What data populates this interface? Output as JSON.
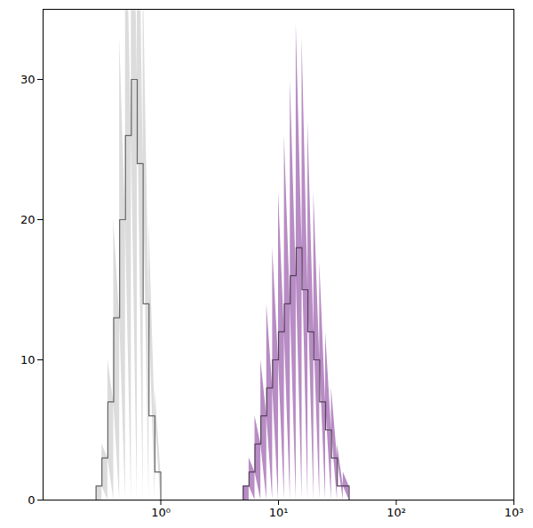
{
  "chart_data": {
    "type": "histogram",
    "log": "x",
    "bins": [
      0.251,
      0.282,
      0.316,
      0.355,
      0.398,
      0.447,
      0.501,
      0.562,
      0.631,
      0.708,
      0.794,
      0.891,
      1,
      1.122,
      1.259,
      1.413,
      1.585,
      1.778,
      1.995,
      2.239,
      2.512,
      2.818,
      3.162,
      3.548,
      3.981,
      4.467,
      5.012,
      5.623,
      6.31,
      7.079,
      7.943,
      8.913,
      10,
      11.22,
      12.59,
      14.13,
      15.85,
      17.78,
      19.95,
      22.39,
      25.12,
      28.18,
      31.62,
      35.48,
      39.81,
      44.67,
      50.12
    ],
    "series": [
      {
        "color": "#dcdcdc",
        "values": [
          0,
          1,
          3,
          7,
          13,
          20,
          26,
          30,
          24,
          14,
          6,
          2,
          0,
          0,
          0,
          0,
          0,
          0,
          0,
          0,
          0,
          0,
          0,
          0,
          0,
          0,
          0,
          0,
          0,
          0,
          0,
          0,
          0,
          0,
          0,
          0,
          0,
          0,
          0,
          0,
          0,
          0,
          0,
          0,
          0,
          0
        ]
      },
      {
        "color": "#b88cc4",
        "values": [
          0,
          0,
          0,
          0,
          0,
          0,
          0,
          0,
          0,
          0,
          0,
          0,
          0,
          0,
          0,
          0,
          0,
          0,
          0,
          0,
          0,
          0,
          0,
          0,
          0,
          0,
          1,
          2,
          4,
          6,
          8,
          10,
          12,
          14,
          16,
          18,
          15,
          12,
          10,
          7,
          5,
          3,
          1,
          1,
          0,
          0
        ]
      }
    ],
    "xlim": [
      0.1,
      1000
    ],
    "xticks": [
      {
        "value": 1,
        "label": "10⁰"
      },
      {
        "value": 10,
        "label": "10¹"
      },
      {
        "value": 100,
        "label": "10²"
      },
      {
        "value": 1000,
        "label": "10³"
      }
    ],
    "ylim": [
      0,
      35
    ],
    "yticks": [
      0,
      10,
      20,
      30
    ]
  }
}
